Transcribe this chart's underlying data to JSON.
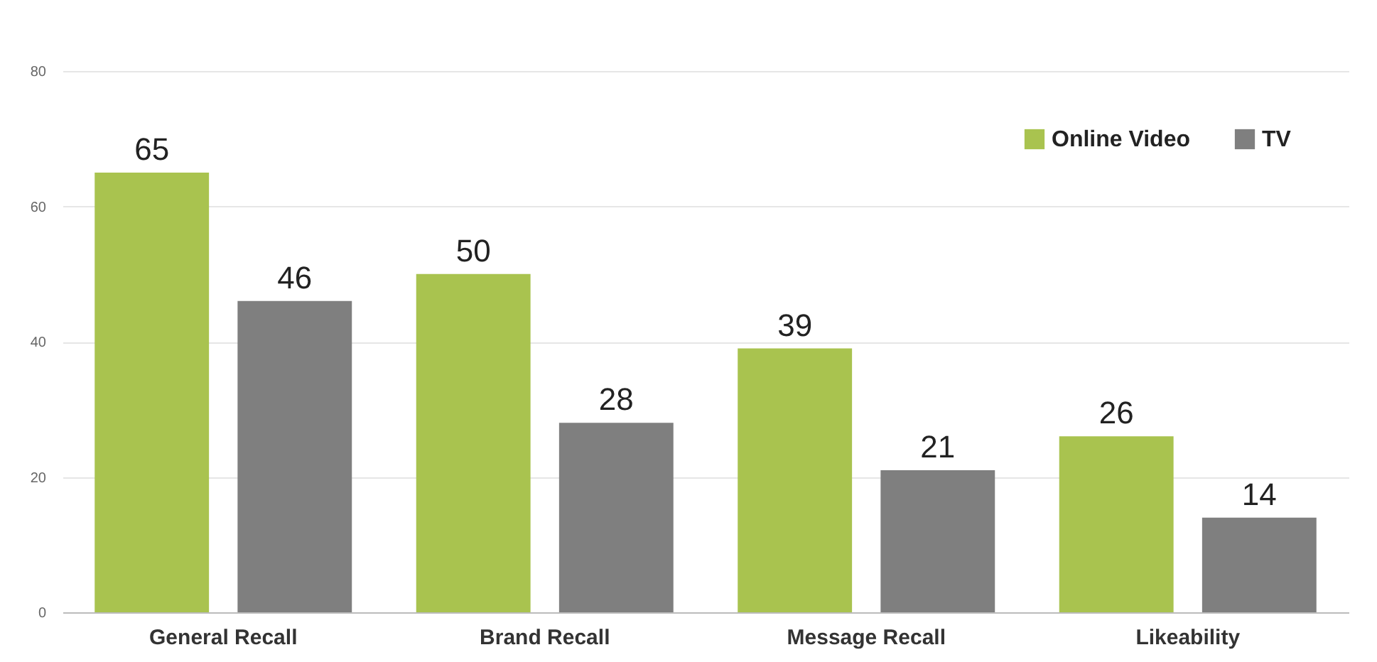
{
  "chart_data": {
    "type": "bar",
    "categories": [
      "General Recall",
      "Brand Recall",
      "Message Recall",
      "Likeability"
    ],
    "series": [
      {
        "name": "Online Video",
        "color": "#a9c34f",
        "values": [
          65,
          50,
          39,
          26
        ]
      },
      {
        "name": "TV",
        "color": "#7f7f7f",
        "values": [
          46,
          28,
          21,
          14
        ]
      }
    ],
    "ylim": [
      0,
      80
    ],
    "yticks": [
      0,
      20,
      40,
      60,
      80
    ],
    "grid": "y",
    "legend": "top right",
    "data_labels": true
  }
}
